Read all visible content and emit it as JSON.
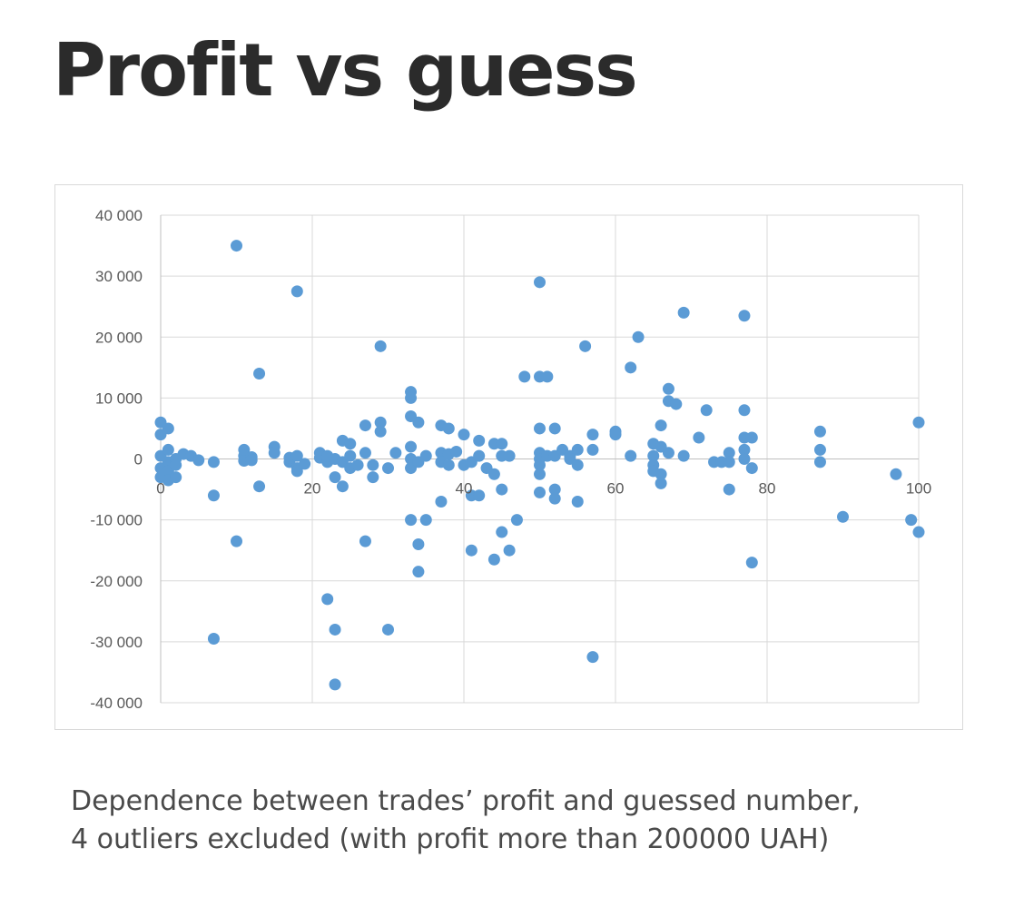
{
  "page": {
    "title": "Profit vs guess",
    "caption_line1": "Dependence between trades’ profit and guessed number,",
    "caption_line2": "4 outliers excluded (with profit more than 200000 UAH)"
  },
  "chart_data": {
    "type": "scatter",
    "title": "",
    "xlabel": "",
    "ylabel": "",
    "xlim": [
      0,
      100
    ],
    "ylim": [
      -40000,
      40000
    ],
    "x_ticks": [
      0,
      20,
      40,
      60,
      80,
      100
    ],
    "x_tick_labels": [
      "0",
      "20",
      "40",
      "60",
      "80",
      "100"
    ],
    "y_ticks": [
      40000,
      30000,
      20000,
      10000,
      0,
      -10000,
      -20000,
      -30000,
      -40000
    ],
    "y_tick_labels": [
      "40 000",
      "30 000",
      "20 000",
      "10 000",
      "0",
      "-10 000",
      "-20 000",
      "-30 000",
      "-40 000"
    ],
    "grid": true,
    "legend": "none",
    "marker_color": "#5b9bd5",
    "grid_color": "#d9d9d9",
    "series": [
      {
        "points": [
          [
            0,
            6000
          ],
          [
            0,
            4000
          ],
          [
            0,
            500
          ],
          [
            0,
            -1500
          ],
          [
            0,
            -3000
          ],
          [
            1,
            5000
          ],
          [
            1,
            1500
          ],
          [
            1,
            -500
          ],
          [
            1,
            -2000
          ],
          [
            1,
            -3500
          ],
          [
            2,
            0
          ],
          [
            2,
            -1000
          ],
          [
            2,
            -3000
          ],
          [
            3,
            800
          ],
          [
            4,
            500
          ],
          [
            5,
            -200
          ],
          [
            7,
            -6000
          ],
          [
            7,
            -29500
          ],
          [
            7,
            -500
          ],
          [
            10,
            35000
          ],
          [
            10,
            -13500
          ],
          [
            11,
            1500
          ],
          [
            11,
            500
          ],
          [
            11,
            -300
          ],
          [
            12,
            300
          ],
          [
            12,
            -200
          ],
          [
            13,
            14000
          ],
          [
            13,
            -4500
          ],
          [
            15,
            2000
          ],
          [
            15,
            1000
          ],
          [
            17,
            -500
          ],
          [
            17,
            200
          ],
          [
            18,
            27500
          ],
          [
            18,
            -1500
          ],
          [
            18,
            -2000
          ],
          [
            18,
            500
          ],
          [
            19,
            -800
          ],
          [
            21,
            1000
          ],
          [
            21,
            200
          ],
          [
            22,
            -500
          ],
          [
            22,
            500
          ],
          [
            22,
            -23000
          ],
          [
            23,
            -28000
          ],
          [
            23,
            -37000
          ],
          [
            23,
            -3000
          ],
          [
            23,
            0
          ],
          [
            24,
            -4500
          ],
          [
            24,
            3000
          ],
          [
            24,
            -500
          ],
          [
            25,
            2500
          ],
          [
            25,
            -1500
          ],
          [
            25,
            500
          ],
          [
            26,
            -1000
          ],
          [
            27,
            5500
          ],
          [
            27,
            1000
          ],
          [
            27,
            -13500
          ],
          [
            28,
            -3000
          ],
          [
            28,
            -1000
          ],
          [
            29,
            18500
          ],
          [
            29,
            6000
          ],
          [
            29,
            4500
          ],
          [
            30,
            -1500
          ],
          [
            30,
            -28000
          ],
          [
            31,
            1000
          ],
          [
            33,
            11000
          ],
          [
            33,
            10000
          ],
          [
            33,
            7000
          ],
          [
            33,
            2000
          ],
          [
            33,
            0
          ],
          [
            33,
            -1500
          ],
          [
            33,
            -10000
          ],
          [
            34,
            6000
          ],
          [
            34,
            -14000
          ],
          [
            34,
            -18500
          ],
          [
            34,
            -500
          ],
          [
            35,
            500
          ],
          [
            35,
            -10000
          ],
          [
            37,
            5500
          ],
          [
            37,
            1000
          ],
          [
            37,
            -500
          ],
          [
            37,
            -7000
          ],
          [
            38,
            5000
          ],
          [
            38,
            800
          ],
          [
            38,
            -1000
          ],
          [
            39,
            1200
          ],
          [
            40,
            4000
          ],
          [
            40,
            -1000
          ],
          [
            41,
            -15000
          ],
          [
            41,
            -6000
          ],
          [
            41,
            -500
          ],
          [
            42,
            3000
          ],
          [
            42,
            500
          ],
          [
            42,
            -6000
          ],
          [
            43,
            -1500
          ],
          [
            44,
            2500
          ],
          [
            44,
            -2500
          ],
          [
            44,
            -16500
          ],
          [
            45,
            2500
          ],
          [
            45,
            500
          ],
          [
            45,
            -5000
          ],
          [
            45,
            -12000
          ],
          [
            46,
            -15000
          ],
          [
            46,
            500
          ],
          [
            47,
            -10000
          ],
          [
            48,
            13500
          ],
          [
            50,
            29000
          ],
          [
            50,
            13500
          ],
          [
            50,
            5000
          ],
          [
            50,
            1000
          ],
          [
            50,
            0
          ],
          [
            50,
            -1000
          ],
          [
            50,
            -2500
          ],
          [
            50,
            -5500
          ],
          [
            51,
            13500
          ],
          [
            51,
            500
          ],
          [
            52,
            5000
          ],
          [
            52,
            500
          ],
          [
            52,
            -5000
          ],
          [
            52,
            -6500
          ],
          [
            53,
            1500
          ],
          [
            54,
            500
          ],
          [
            54,
            0
          ],
          [
            55,
            1500
          ],
          [
            55,
            -1000
          ],
          [
            55,
            -7000
          ],
          [
            56,
            18500
          ],
          [
            57,
            4000
          ],
          [
            57,
            1500
          ],
          [
            57,
            -32500
          ],
          [
            60,
            4500
          ],
          [
            60,
            4000
          ],
          [
            62,
            15000
          ],
          [
            62,
            500
          ],
          [
            63,
            20000
          ],
          [
            65,
            500
          ],
          [
            65,
            -1000
          ],
          [
            65,
            -2000
          ],
          [
            65,
            2500
          ],
          [
            66,
            5500
          ],
          [
            66,
            2000
          ],
          [
            66,
            -2500
          ],
          [
            66,
            -4000
          ],
          [
            67,
            11500
          ],
          [
            67,
            9500
          ],
          [
            67,
            1000
          ],
          [
            68,
            9000
          ],
          [
            69,
            24000
          ],
          [
            69,
            500
          ],
          [
            71,
            3500
          ],
          [
            72,
            8000
          ],
          [
            73,
            -500
          ],
          [
            74,
            -500
          ],
          [
            75,
            1000
          ],
          [
            75,
            -500
          ],
          [
            75,
            -5000
          ],
          [
            77,
            23500
          ],
          [
            77,
            8000
          ],
          [
            77,
            3500
          ],
          [
            77,
            1500
          ],
          [
            77,
            0
          ],
          [
            78,
            3500
          ],
          [
            78,
            -1500
          ],
          [
            78,
            -17000
          ],
          [
            87,
            4500
          ],
          [
            87,
            1500
          ],
          [
            87,
            -500
          ],
          [
            90,
            -9500
          ],
          [
            97,
            -2500
          ],
          [
            99,
            -10000
          ],
          [
            100,
            6000
          ],
          [
            100,
            -12000
          ]
        ]
      }
    ]
  }
}
